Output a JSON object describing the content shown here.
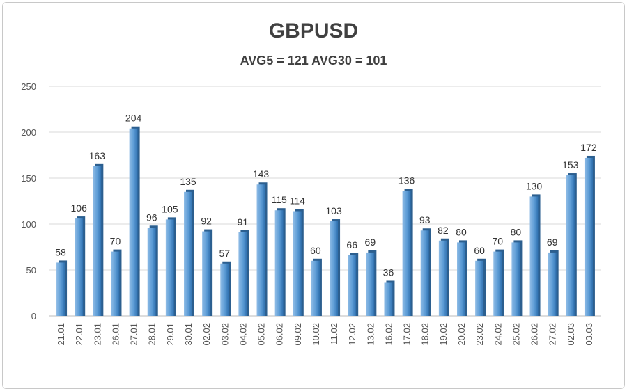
{
  "chart_data": {
    "type": "bar",
    "title": "GBPUSD",
    "subtitle": "AVG5 = 121 AVG30 = 101",
    "categories": [
      "21.01",
      "22.01",
      "23.01",
      "26.01",
      "27.01",
      "28.01",
      "29.01",
      "30.01",
      "02.02",
      "03.02",
      "04.02",
      "05.02",
      "06.02",
      "09.02",
      "10.02",
      "11.02",
      "12.02",
      "13.02",
      "16.02",
      "17.02",
      "18.02",
      "19.02",
      "20.02",
      "23.02",
      "24.02",
      "25.02",
      "26.02",
      "27.02",
      "02.03",
      "03.03"
    ],
    "values": [
      58,
      106,
      163,
      70,
      204,
      96,
      105,
      135,
      92,
      57,
      91,
      143,
      115,
      114,
      60,
      103,
      66,
      69,
      36,
      136,
      93,
      82,
      80,
      60,
      70,
      80,
      130,
      69,
      153,
      172
    ],
    "ylim": [
      0,
      250
    ],
    "yticks": [
      0,
      50,
      100,
      150,
      200,
      250
    ],
    "xlabel": "",
    "ylabel": "",
    "grid": true,
    "legend": "none",
    "colors": {
      "bar": "#5b9bd5",
      "bar_dark": "#2e6fae",
      "grid": "#d9d9d9"
    }
  }
}
